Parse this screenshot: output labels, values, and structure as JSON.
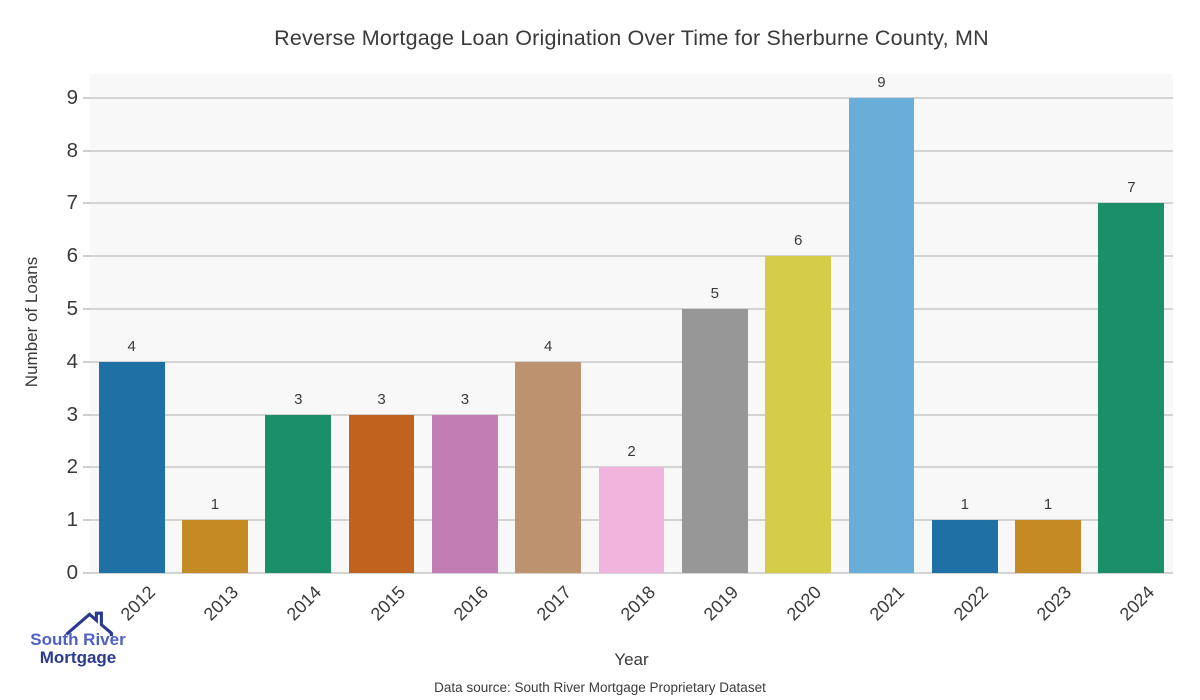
{
  "chart_data": {
    "type": "bar",
    "title": "Reverse Mortgage Loan Origination Over Time for Sherburne County, MN",
    "xlabel": "Year",
    "ylabel": "Number of Loans",
    "categories": [
      "2012",
      "2013",
      "2014",
      "2015",
      "2016",
      "2017",
      "2018",
      "2019",
      "2020",
      "2021",
      "2022",
      "2023",
      "2024"
    ],
    "values": [
      4,
      1,
      3,
      3,
      3,
      4,
      2,
      5,
      6,
      9,
      1,
      1,
      7
    ],
    "bar_colors": [
      "#1f70a4",
      "#c48b25",
      "#1a8f6a",
      "#c0631f",
      "#c17db4",
      "#bd926f",
      "#f0b4dd",
      "#979797",
      "#d5cc48",
      "#68aed8",
      "#1f70a4",
      "#c48b25",
      "#1a8f6a"
    ],
    "yticks": [
      0,
      1,
      2,
      3,
      4,
      5,
      6,
      7,
      8,
      9
    ],
    "ylim": [
      0,
      9.45
    ],
    "grid": "horizontal",
    "legend": "none",
    "plot_background": "#f8f8f8",
    "grid_color": "#d3d3d3",
    "text_color": "#3a3a3a"
  },
  "footer": {
    "source": "Data source: South River Mortgage Proprietary Dataset"
  },
  "logo": {
    "line1": "South River",
    "line2": "Mortgage",
    "color_line1": "#4f61c4",
    "color_line2": "#2b3a8f",
    "roof_icon": "house-roof-with-chimney"
  }
}
